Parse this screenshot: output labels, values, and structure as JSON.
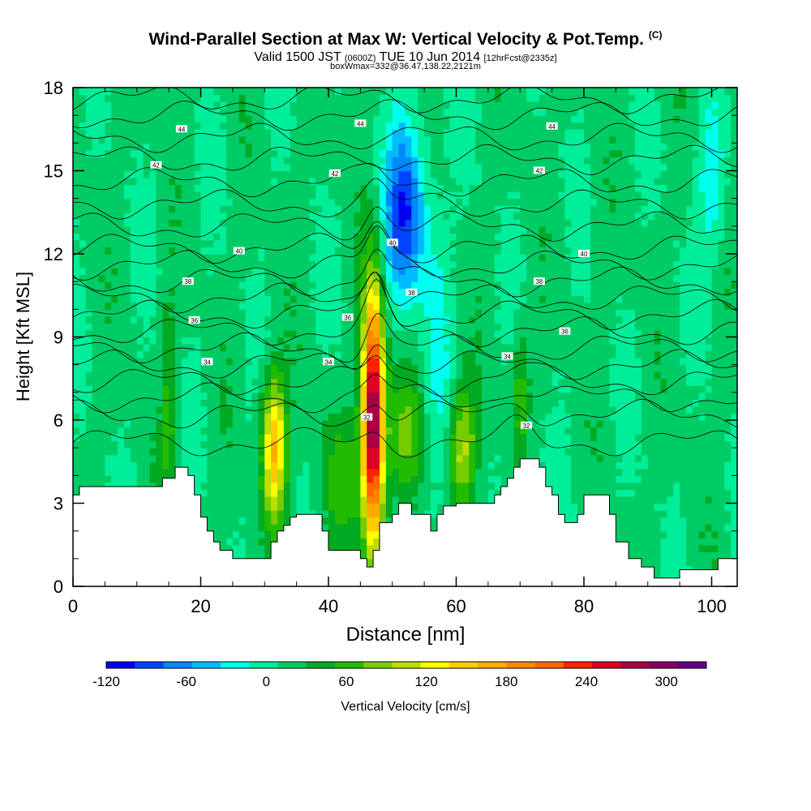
{
  "header": {
    "title": "Wind-Parallel Section at Max W: Vertical Velocity & Pot.Temp.",
    "copyright_mark": "(C)",
    "valid_prefix": "Valid 1500 JST",
    "valid_utc": "(0600Z)",
    "valid_date": "TUE 10 Jun 2014",
    "forecast_info": "[12hrFcst@2335z]",
    "box_info": "boxWmax=332@36.47,138.22,2121m"
  },
  "colors": {
    "terrain": "#ffffff",
    "contour": "#000000",
    "palette": [
      "#0000ee",
      "#0044ff",
      "#0088ff",
      "#00bbff",
      "#00ffee",
      "#00ee99",
      "#00cc66",
      "#00aa22",
      "#22bb00",
      "#77cc00",
      "#bbdd00",
      "#ffff00",
      "#ffcc00",
      "#ffaa00",
      "#ff8800",
      "#ff6600",
      "#ff2200",
      "#dd0022",
      "#aa0044",
      "#880066",
      "#660088"
    ]
  },
  "chart_data": {
    "type": "heatmap",
    "xlabel": "Distance [nm]",
    "ylabel": "Height [Kft MSL]",
    "xlim": [
      0,
      104
    ],
    "ylim": [
      0,
      18
    ],
    "xticks": [
      0,
      20,
      40,
      60,
      80,
      100
    ],
    "yticks": [
      0,
      3,
      6,
      9,
      12,
      15,
      18
    ],
    "colorbar": {
      "label": "Vertical Velocity [cm/s]",
      "min": -120,
      "max": 330,
      "ticks": [
        -120,
        -60,
        0,
        60,
        120,
        180,
        240,
        300
      ]
    },
    "terrain_height": [
      [
        0,
        3.3
      ],
      [
        1,
        3.6
      ],
      [
        12,
        3.6
      ],
      [
        14,
        3.9
      ],
      [
        16,
        4.3
      ],
      [
        18,
        4.0
      ],
      [
        19,
        3.3
      ],
      [
        20,
        2.5
      ],
      [
        21,
        2.0
      ],
      [
        22,
        1.6
      ],
      [
        23,
        1.3
      ],
      [
        25,
        1.0
      ],
      [
        30,
        1.0
      ],
      [
        31,
        1.6
      ],
      [
        32,
        2.0
      ],
      [
        33,
        2.2
      ],
      [
        34,
        2.5
      ],
      [
        35,
        2.6
      ],
      [
        38,
        2.6
      ],
      [
        39,
        2.0
      ],
      [
        40,
        1.3
      ],
      [
        44,
        1.3
      ],
      [
        45,
        1.0
      ],
      [
        46,
        0.7
      ],
      [
        47,
        1.3
      ],
      [
        48,
        2.3
      ],
      [
        50,
        2.6
      ],
      [
        51,
        3.0
      ],
      [
        53,
        2.6
      ],
      [
        56,
        2.0
      ],
      [
        57,
        2.6
      ],
      [
        58,
        2.9
      ],
      [
        60,
        3.0
      ],
      [
        64,
        3.0
      ],
      [
        66,
        3.3
      ],
      [
        67,
        3.6
      ],
      [
        68,
        3.9
      ],
      [
        69,
        4.3
      ],
      [
        70,
        4.6
      ],
      [
        72,
        4.6
      ],
      [
        73,
        4.3
      ],
      [
        74,
        3.6
      ],
      [
        75,
        3.3
      ],
      [
        76,
        2.6
      ],
      [
        77,
        2.3
      ],
      [
        79,
        2.6
      ],
      [
        80,
        3.3
      ],
      [
        83,
        3.3
      ],
      [
        84,
        2.6
      ],
      [
        85,
        1.6
      ],
      [
        87,
        1.0
      ],
      [
        89,
        0.7
      ],
      [
        91,
        0.3
      ],
      [
        93,
        0.3
      ],
      [
        95,
        0.6
      ],
      [
        99,
        0.6
      ],
      [
        101,
        1.0
      ],
      [
        104,
        1.0
      ]
    ],
    "theta_contour_labels": [
      {
        "x": 17,
        "y": 16.5,
        "label": "44"
      },
      {
        "x": 45,
        "y": 16.7,
        "label": "44"
      },
      {
        "x": 75,
        "y": 16.6,
        "label": "44"
      },
      {
        "x": 13,
        "y": 15.2,
        "label": "42"
      },
      {
        "x": 41,
        "y": 14.9,
        "label": "42"
      },
      {
        "x": 73,
        "y": 15.0,
        "label": "42"
      },
      {
        "x": 26,
        "y": 12.1,
        "label": "40"
      },
      {
        "x": 50,
        "y": 12.4,
        "label": "40"
      },
      {
        "x": 80,
        "y": 12.0,
        "label": "40"
      },
      {
        "x": 18,
        "y": 11.0,
        "label": "38"
      },
      {
        "x": 53,
        "y": 10.6,
        "label": "38"
      },
      {
        "x": 73,
        "y": 11.0,
        "label": "38"
      },
      {
        "x": 19,
        "y": 9.6,
        "label": "36"
      },
      {
        "x": 43,
        "y": 9.7,
        "label": "36"
      },
      {
        "x": 77,
        "y": 9.2,
        "label": "36"
      },
      {
        "x": 21,
        "y": 8.1,
        "label": "34"
      },
      {
        "x": 40,
        "y": 8.1,
        "label": "34"
      },
      {
        "x": 68,
        "y": 8.3,
        "label": "34"
      },
      {
        "x": 46,
        "y": 6.1,
        "label": "32"
      },
      {
        "x": 71,
        "y": 5.8,
        "label": "32"
      }
    ],
    "vertical_velocity_features": [
      {
        "x": 47,
        "y": 6.0,
        "sx": 1.2,
        "sy": 3.2,
        "value": 300
      },
      {
        "x": 31.5,
        "y": 5.0,
        "sx": 1.3,
        "sy": 1.8,
        "value": 150
      },
      {
        "x": 52,
        "y": 13.5,
        "sx": 2.2,
        "sy": 2.2,
        "value": -110
      },
      {
        "x": 100,
        "y": 14.5,
        "sx": 1.5,
        "sy": 2.0,
        "value": -45
      },
      {
        "x": 61,
        "y": 5.0,
        "sx": 1.5,
        "sy": 1.5,
        "value": 90
      },
      {
        "x": 52,
        "y": 5.5,
        "sx": 2.0,
        "sy": 1.5,
        "value": 55
      },
      {
        "x": 15,
        "y": 6.5,
        "sx": 0.8,
        "sy": 2.5,
        "value": 45
      },
      {
        "x": 70,
        "y": 7.0,
        "sx": 1.0,
        "sy": 1.5,
        "value": 50
      },
      {
        "x": 42,
        "y": 4.0,
        "sx": 2.5,
        "sy": 1.5,
        "value": 40
      },
      {
        "x": 57,
        "y": 9.0,
        "sx": 1.5,
        "sy": 4.0,
        "value": -25
      }
    ]
  }
}
